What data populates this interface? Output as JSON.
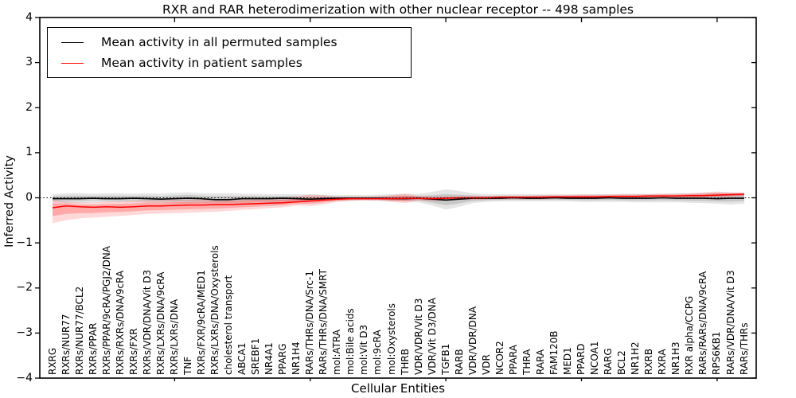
{
  "title": "RXR and RAR heterodimerization with other nuclear receptor -- 498 samples",
  "axes": {
    "xlabel": "Cellular Entities",
    "ylabel": "Inferred Activity"
  },
  "legend": {
    "position": "upper left",
    "entries": [
      {
        "label": "Mean activity in all permuted samples",
        "color": "#000000"
      },
      {
        "label": "Mean activity in patient samples",
        "color": "#ff0000"
      }
    ]
  },
  "chart_data": {
    "type": "line",
    "title": "RXR and RAR heterodimerization with other nuclear receptor -- 498 samples",
    "xlabel": "Cellular Entities",
    "ylabel": "Inferred Activity",
    "ylim": [
      -4,
      4
    ],
    "grid": false,
    "zero_reference_line": "dotted",
    "legend_position": "upper left",
    "yticks": [
      {
        "value": 4,
        "label": "4"
      },
      {
        "value": 3,
        "label": "3"
      },
      {
        "value": 2,
        "label": "2"
      },
      {
        "value": 1,
        "label": "1"
      },
      {
        "value": 0,
        "label": "0"
      },
      {
        "value": -1,
        "label": "−1"
      },
      {
        "value": -2,
        "label": "−2"
      },
      {
        "value": -3,
        "label": "−3"
      },
      {
        "value": -4,
        "label": "−4"
      }
    ],
    "xtick_marks_at": [
      10,
      20,
      30,
      40,
      50
    ],
    "categories": [
      "RXRG",
      "RXRs/NUR77",
      "RXRs/NUR77/BCL2",
      "RXRs/PPAR",
      "RXRs/PPAR/9cRA/PGJ2/DNA",
      "RXRs/RXRs/DNA/9cRA",
      "RXRs/FXR",
      "RXRs/VDR/DNA/Vit D3",
      "RXRs/LXRs/DNA/9cRA",
      "RXRs/LXRs/DNA",
      "TNF",
      "RXRs/FXR/9cRA/MED1",
      "RXRs/LXRs/DNA/Oxysterols",
      "cholesterol transport",
      "ABCA1",
      "SREBF1",
      "NR4A1",
      "PPARG",
      "NR1H4",
      "RARs/THRs/DNA/Src-1",
      "RARs/THRs/DNA/SMRT",
      "mol:ATRA",
      "mol:Bile acids",
      "mol:Vit D3",
      "mol:9cRA",
      "mol:Oxysterols",
      "THRB",
      "VDR/VDR/Vit D3",
      "VDR/Vit D3/DNA",
      "TGFB1",
      "RARB",
      "VDR/VDR/DNA",
      "VDR",
      "NCOR2",
      "PPARA",
      "THRA",
      "RARA",
      "FAM120B",
      "MED1",
      "PPARD",
      "NCOA1",
      "RARG",
      "BCL2",
      "NR1H2",
      "RXRB",
      "RXRA",
      "NR1H3",
      "RXR alpha/CCPG",
      "RARs/RARs/DNA/9cRA",
      "RPS6KB1",
      "RARs/VDR/DNA/Vit D3",
      "RARs/THRs"
    ],
    "series": [
      {
        "name": "Mean activity in all permuted samples",
        "color": "#000000",
        "band_color": "#000000",
        "band_outer_alpha": 0.1,
        "band_inner_alpha": 0.13,
        "values": [
          -0.02,
          -0.02,
          -0.02,
          -0.01,
          -0.02,
          -0.02,
          -0.01,
          -0.02,
          -0.03,
          -0.02,
          -0.01,
          -0.02,
          -0.04,
          -0.04,
          -0.02,
          -0.02,
          -0.02,
          -0.01,
          -0.02,
          -0.03,
          -0.02,
          -0.01,
          -0.01,
          -0.01,
          -0.01,
          -0.02,
          -0.02,
          -0.01,
          -0.03,
          -0.05,
          -0.03,
          -0.01,
          -0.01,
          -0.01,
          0.0,
          -0.01,
          -0.01,
          0.0,
          -0.01,
          -0.01,
          -0.01,
          0.0,
          -0.01,
          -0.01,
          -0.01,
          0.0,
          -0.01,
          -0.01,
          -0.01,
          -0.02,
          -0.01,
          -0.01
        ],
        "band_low": [
          -0.1,
          -0.12,
          -0.12,
          -0.1,
          -0.1,
          -0.1,
          -0.1,
          -0.11,
          -0.11,
          -0.12,
          -0.13,
          -0.12,
          -0.12,
          -0.12,
          -0.11,
          -0.1,
          -0.1,
          -0.1,
          -0.09,
          -0.09,
          -0.08,
          -0.07,
          -0.06,
          -0.06,
          -0.07,
          -0.08,
          -0.08,
          -0.1,
          -0.17,
          -0.26,
          -0.2,
          -0.12,
          -0.09,
          -0.08,
          -0.08,
          -0.08,
          -0.08,
          -0.08,
          -0.08,
          -0.09,
          -0.09,
          -0.09,
          -0.09,
          -0.1,
          -0.1,
          -0.1,
          -0.1,
          -0.11,
          -0.12,
          -0.13,
          -0.15,
          -0.13
        ],
        "band_high": [
          0.08,
          0.1,
          0.1,
          0.09,
          0.1,
          0.1,
          0.09,
          0.1,
          0.09,
          0.11,
          0.12,
          0.1,
          0.1,
          0.1,
          0.09,
          0.09,
          0.08,
          0.08,
          0.08,
          0.08,
          0.07,
          0.06,
          0.06,
          0.06,
          0.07,
          0.08,
          0.08,
          0.09,
          0.13,
          0.19,
          0.15,
          0.1,
          0.08,
          0.08,
          0.08,
          0.08,
          0.08,
          0.08,
          0.08,
          0.08,
          0.08,
          0.08,
          0.09,
          0.09,
          0.09,
          0.09,
          0.1,
          0.1,
          0.11,
          0.12,
          0.12,
          0.11
        ]
      },
      {
        "name": "Mean activity in patient samples",
        "color": "#ff0000",
        "band_color": "#ff0000",
        "band_outer_alpha": 0.15,
        "band_inner_alpha": 0.22,
        "values": [
          -0.22,
          -0.18,
          -0.2,
          -0.21,
          -0.2,
          -0.21,
          -0.2,
          -0.18,
          -0.18,
          -0.17,
          -0.16,
          -0.16,
          -0.15,
          -0.15,
          -0.14,
          -0.13,
          -0.12,
          -0.11,
          -0.09,
          -0.07,
          -0.05,
          -0.03,
          -0.02,
          -0.02,
          -0.02,
          -0.02,
          -0.01,
          -0.01,
          -0.02,
          -0.01,
          0.0,
          0.0,
          0.0,
          0.01,
          0.01,
          0.01,
          0.01,
          0.02,
          0.02,
          0.02,
          0.02,
          0.03,
          0.03,
          0.03,
          0.04,
          0.04,
          0.04,
          0.05,
          0.05,
          0.06,
          0.07,
          0.08
        ],
        "band_low": [
          -0.56,
          -0.5,
          -0.46,
          -0.44,
          -0.42,
          -0.4,
          -0.38,
          -0.36,
          -0.35,
          -0.34,
          -0.33,
          -0.32,
          -0.31,
          -0.29,
          -0.27,
          -0.25,
          -0.23,
          -0.21,
          -0.17,
          -0.18,
          -0.15,
          -0.09,
          -0.07,
          -0.06,
          -0.06,
          -0.09,
          -0.12,
          -0.06,
          -0.07,
          -0.05,
          -0.04,
          -0.04,
          -0.04,
          -0.03,
          -0.03,
          -0.03,
          -0.03,
          -0.02,
          -0.02,
          -0.02,
          -0.02,
          -0.01,
          -0.01,
          -0.01,
          0.0,
          0.0,
          0.0,
          0.0,
          0.0,
          0.01,
          0.02,
          0.03
        ],
        "band_high": [
          -0.04,
          -0.08,
          -0.1,
          -0.1,
          -0.08,
          -0.07,
          -0.06,
          -0.05,
          -0.05,
          -0.04,
          -0.04,
          -0.03,
          -0.03,
          -0.02,
          -0.01,
          0.0,
          0.0,
          0.01,
          0.03,
          0.07,
          0.06,
          0.02,
          0.02,
          0.02,
          0.03,
          0.06,
          0.1,
          0.04,
          0.03,
          0.03,
          0.03,
          0.04,
          0.04,
          0.05,
          0.05,
          0.05,
          0.06,
          0.06,
          0.06,
          0.07,
          0.07,
          0.07,
          0.08,
          0.08,
          0.08,
          0.09,
          0.09,
          0.1,
          0.12,
          0.14,
          0.12,
          0.12
        ]
      }
    ]
  }
}
